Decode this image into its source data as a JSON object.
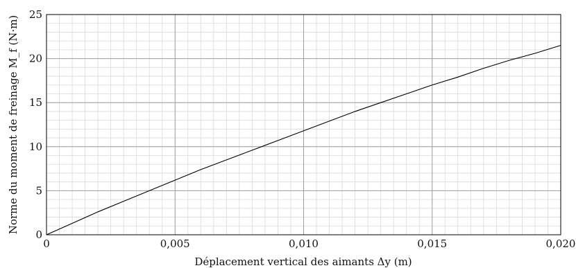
{
  "chart_data": {
    "type": "line",
    "xlabel": "Déplacement vertical des aimants Δy (m)",
    "ylabel": "Norme du moment de freinage M_f (N·m)",
    "xlim": [
      0,
      0.02
    ],
    "ylim": [
      0,
      25
    ],
    "xticks": [
      {
        "value": 0,
        "label": "0"
      },
      {
        "value": 0.005,
        "label": "0,005"
      },
      {
        "value": 0.01,
        "label": "0,010"
      },
      {
        "value": 0.015,
        "label": "0,015"
      },
      {
        "value": 0.02,
        "label": "0,020"
      }
    ],
    "yticks": [
      {
        "value": 0,
        "label": "0"
      },
      {
        "value": 5,
        "label": "5"
      },
      {
        "value": 10,
        "label": "10"
      },
      {
        "value": 15,
        "label": "15"
      },
      {
        "value": 20,
        "label": "20"
      },
      {
        "value": 25,
        "label": "25"
      }
    ],
    "grid": true,
    "minor_grid": true,
    "series": [
      {
        "color": "#000000",
        "x": [
          0,
          0.001,
          0.002,
          0.003,
          0.004,
          0.005,
          0.006,
          0.007,
          0.008,
          0.009,
          0.01,
          0.011,
          0.012,
          0.013,
          0.014,
          0.015,
          0.016,
          0.017,
          0.018,
          0.019,
          0.02
        ],
        "y": [
          0,
          1.3,
          2.6,
          3.8,
          5.0,
          6.2,
          7.4,
          8.5,
          9.6,
          10.7,
          11.8,
          12.9,
          14.0,
          15.0,
          16.0,
          17.0,
          17.9,
          18.9,
          19.8,
          20.6,
          21.5
        ]
      }
    ]
  }
}
